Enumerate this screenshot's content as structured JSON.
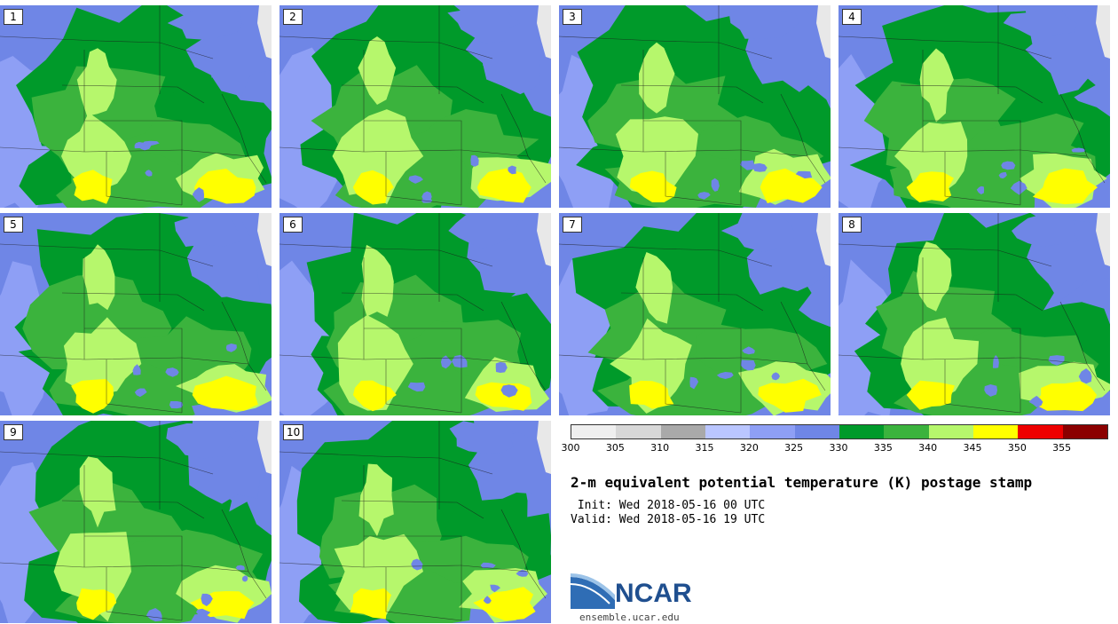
{
  "panels": [
    {
      "label": "1"
    },
    {
      "label": "2"
    },
    {
      "label": "3"
    },
    {
      "label": "4"
    },
    {
      "label": "5"
    },
    {
      "label": "6"
    },
    {
      "label": "7"
    },
    {
      "label": "8"
    },
    {
      "label": "9"
    },
    {
      "label": "10"
    }
  ],
  "colorbar": {
    "colors": [
      "#efefef",
      "#d8d8d8",
      "#a9a9a9",
      "#bac6ff",
      "#8e9ff5",
      "#6f86e6",
      "#009a2a",
      "#3bb33d",
      "#b6f76c",
      "#ffff00",
      "#ee0000",
      "#8b0000"
    ],
    "ticks": [
      "300",
      "305",
      "310",
      "315",
      "320",
      "325",
      "330",
      "335",
      "340",
      "345",
      "350",
      "355"
    ]
  },
  "title": "2-m equivalent potential temperature (K) postage stamp",
  "init_line": " Init: Wed 2018-05-16 00 UTC",
  "valid_line": "Valid: Wed 2018-05-16 19 UTC",
  "logo": {
    "name": "NCAR",
    "url": "ensemble.ucar.edu"
  }
}
